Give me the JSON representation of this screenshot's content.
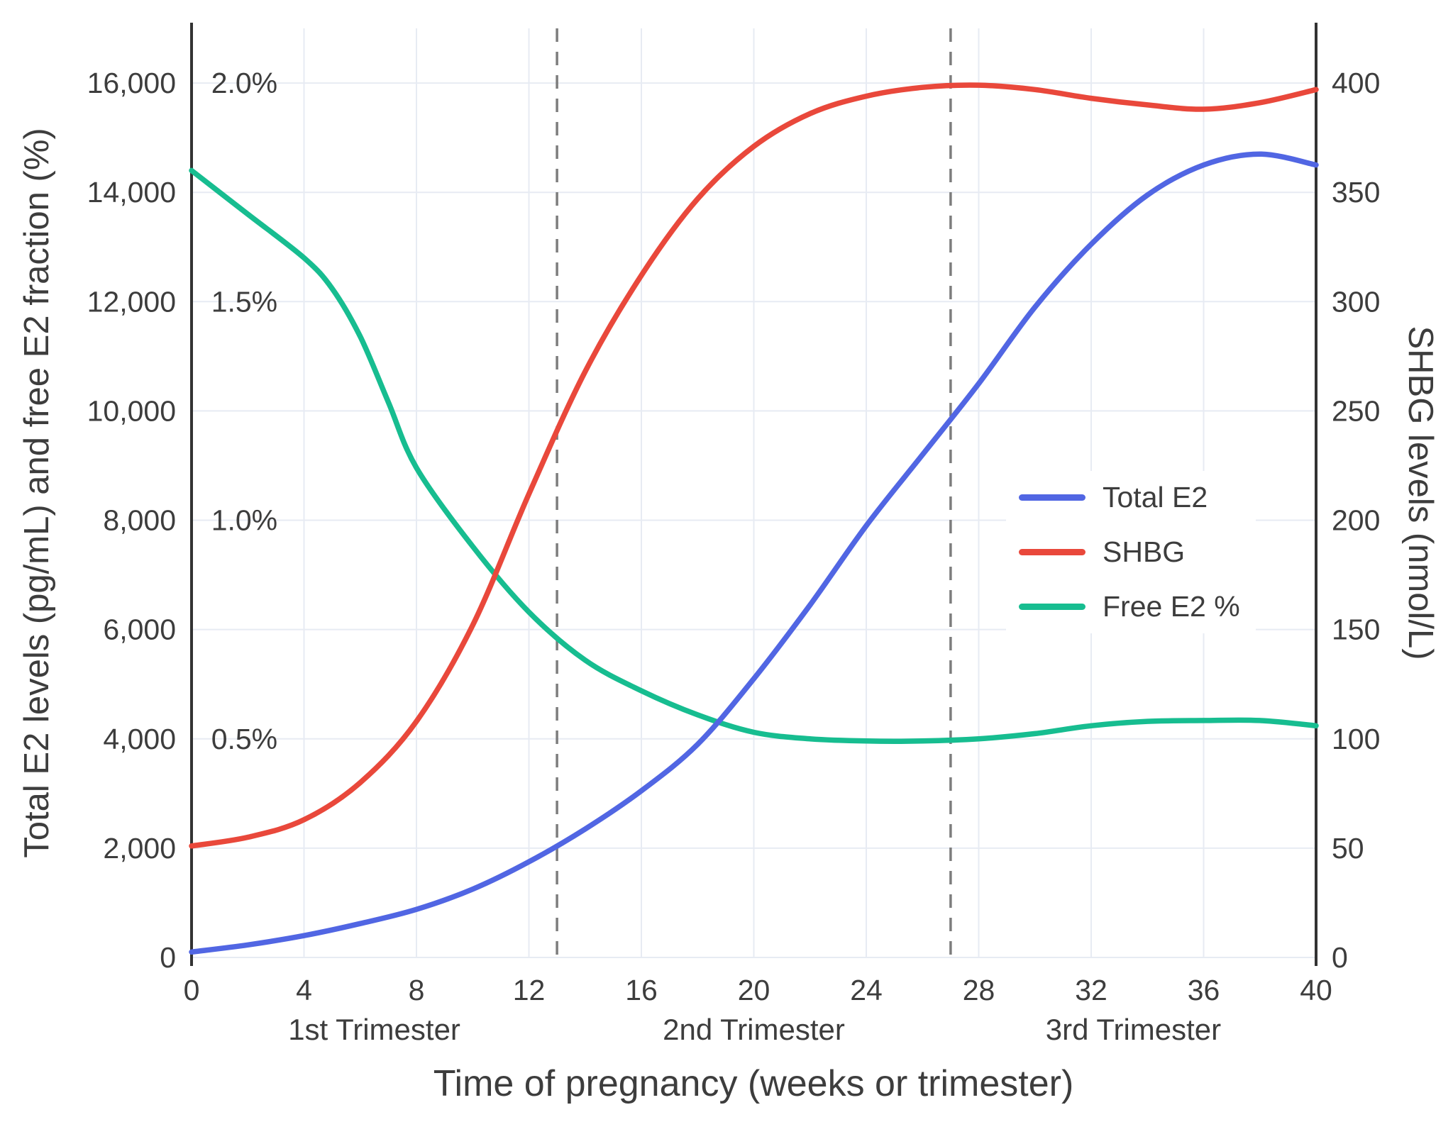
{
  "chart_data": {
    "type": "line",
    "title": "",
    "xlabel": "Time of pregnancy (weeks or trimester)",
    "ylabel_left": "Total E2 levels (pg/mL) and free E2 fraction (%)",
    "ylabel_right": "SHBG levels (nmol/L)",
    "xlim": [
      0,
      40
    ],
    "ylim_left": [
      0,
      17000
    ],
    "ylim_right": [
      0,
      425
    ],
    "pct_to_left_factor": 8000,
    "grid": true,
    "x_tick_values": [
      0,
      4,
      8,
      12,
      16,
      20,
      24,
      28,
      32,
      36,
      40
    ],
    "x_tick_labels": [
      "0",
      "4",
      "8",
      "12",
      "16",
      "20",
      "24",
      "28",
      "32",
      "36",
      "40"
    ],
    "left_tick_values": [
      0,
      2000,
      4000,
      6000,
      8000,
      10000,
      12000,
      14000,
      16000
    ],
    "left_tick_labels": [
      "0",
      "2,000",
      "4,000",
      "6,000",
      "8,000",
      "10,000",
      "12,000",
      "14,000",
      "16,000"
    ],
    "right_tick_values": [
      0,
      50,
      100,
      150,
      200,
      250,
      300,
      350,
      400
    ],
    "right_tick_labels": [
      "0",
      "50",
      "100",
      "150",
      "200",
      "250",
      "300",
      "350",
      "400"
    ],
    "pct_annotations": [
      {
        "label": "2.0%",
        "value_left": 16000
      },
      {
        "label": "1.5%",
        "value_left": 12000
      },
      {
        "label": "1.0%",
        "value_left": 8000
      },
      {
        "label": "0.5%",
        "value_left": 4000
      }
    ],
    "vertical_dashed_lines_weeks": [
      13,
      27
    ],
    "trimesters": [
      {
        "label": "1st Trimester",
        "center_week": 6.5
      },
      {
        "label": "2nd Trimester",
        "center_week": 20
      },
      {
        "label": "3rd Trimester",
        "center_week": 33.5
      }
    ],
    "series": [
      {
        "name": "Total E2",
        "axis": "left",
        "unit": "pg/mL",
        "color": "#5166e3",
        "x": [
          0,
          2,
          4,
          6,
          8,
          10,
          12,
          14,
          16,
          18,
          20,
          22,
          24,
          26,
          28,
          30,
          32,
          34,
          36,
          38,
          40
        ],
        "y": [
          100,
          230,
          400,
          620,
          880,
          1250,
          1750,
          2350,
          3050,
          3900,
          5100,
          6450,
          7900,
          9200,
          10500,
          11900,
          13050,
          13950,
          14500,
          14700,
          14500
        ]
      },
      {
        "name": "SHBG",
        "axis": "right",
        "unit": "nmol/L",
        "color": "#e9483b",
        "x": [
          0,
          2,
          4,
          6,
          8,
          10,
          12,
          14,
          16,
          18,
          20,
          22,
          24,
          26,
          28,
          30,
          32,
          34,
          36,
          38,
          40
        ],
        "y": [
          51,
          55,
          63,
          80,
          108,
          152,
          212,
          268,
          312,
          347,
          371,
          386,
          394,
          398,
          399,
          397,
          393,
          390,
          388,
          391,
          397
        ]
      },
      {
        "name": "Free E2 %",
        "axis": "left_pct",
        "unit": "%",
        "color": "#17bd90",
        "x": [
          0,
          2,
          4,
          5,
          6,
          7,
          8,
          10,
          12,
          14,
          16,
          18,
          20,
          22,
          24,
          26,
          28,
          30,
          32,
          34,
          36,
          38,
          40
        ],
        "y": [
          1.8,
          1.7,
          1.6,
          1.53,
          1.42,
          1.27,
          1.12,
          0.94,
          0.79,
          0.68,
          0.61,
          0.555,
          0.515,
          0.5,
          0.495,
          0.495,
          0.5,
          0.512,
          0.53,
          0.54,
          0.542,
          0.542,
          0.53
        ]
      }
    ],
    "legend_position": "middle-right"
  },
  "colors": {
    "background": "#ffffff",
    "grid": "#e7ebf3",
    "axis_line": "#333333",
    "tick_text": "#3d3d3d",
    "dashed_line": "#7d7d7d"
  }
}
